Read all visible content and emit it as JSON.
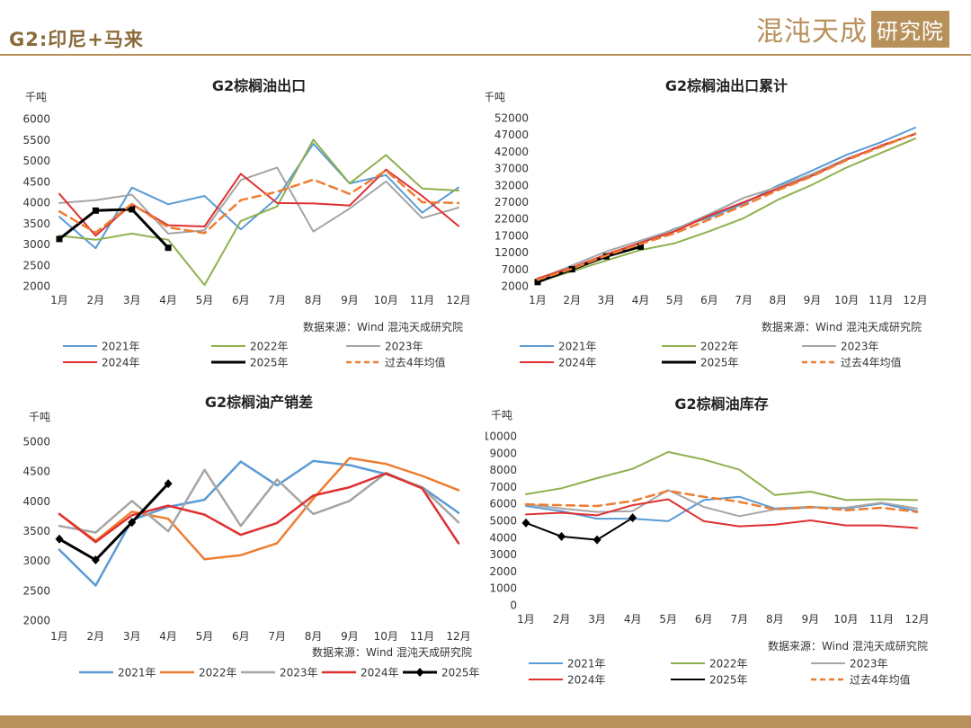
{
  "header": {
    "title": "G2:印尼+马来",
    "brand_main": "混沌天成",
    "brand_sub": "研究院"
  },
  "colors": {
    "2021年": "#5b9bd5",
    "2022年A": "#8fb04e",
    "2022年B": "#ed7d31",
    "2023年": "#a5a5a5",
    "2024年": "#e03030",
    "2025年": "#000000",
    "过去4年均值": "#ed7d31",
    "accent": "#b8905a"
  },
  "chart_data": [
    {
      "id": "export",
      "type": "line",
      "title": "G2棕榈油出口",
      "ylabel": "千吨",
      "source": "数据来源：Wind  混沌天成研究院",
      "categories": [
        "1月",
        "2月",
        "3月",
        "4月",
        "5月",
        "6月",
        "7月",
        "8月",
        "9月",
        "10月",
        "11月",
        "12月"
      ],
      "ylim": [
        2000,
        6000
      ],
      "yticks": [
        "6000",
        "5500",
        "5000",
        "4500",
        "4000",
        "3500",
        "3000",
        "2500",
        "2000"
      ],
      "series": [
        {
          "name": "2021年",
          "color": "#5b9bd5",
          "width": 2,
          "values": [
            3650,
            2900,
            4350,
            3950,
            4150,
            3350,
            4100,
            5400,
            4450,
            4650,
            3750,
            4350
          ]
        },
        {
          "name": "2022年",
          "color": "#8fb04e",
          "width": 2,
          "values": [
            3200,
            3100,
            3250,
            3100,
            2020,
            3550,
            3900,
            5500,
            4450,
            5130,
            4330,
            4280
          ]
        },
        {
          "name": "2023年",
          "color": "#a5a5a5",
          "width": 2,
          "values": [
            3980,
            4050,
            4180,
            3250,
            3330,
            4530,
            4830,
            3300,
            3850,
            4500,
            3620,
            3870
          ]
        },
        {
          "name": "2024年",
          "color": "#e03030",
          "width": 2,
          "values": [
            4200,
            3200,
            3950,
            3450,
            3420,
            4680,
            3980,
            3970,
            3920,
            4780,
            4150,
            3430
          ]
        },
        {
          "name": "2025年",
          "color": "#000000",
          "width": 3,
          "marker": "square",
          "values": [
            3120,
            3800,
            3830,
            2910,
            null,
            null,
            null,
            null,
            null,
            null,
            null,
            null
          ]
        },
        {
          "name": "过去4年均值",
          "color": "#ed7d31",
          "width": 2.5,
          "dash": "9,6",
          "values": [
            3780,
            3270,
            3960,
            3400,
            3260,
            4050,
            4250,
            4540,
            4200,
            4760,
            4000,
            3980
          ]
        }
      ]
    },
    {
      "id": "export-cum",
      "type": "line",
      "title": "G2棕榈油出口累计",
      "ylabel": "千吨",
      "source": "数据来源：Wind  混沌天成研究院",
      "categories": [
        "1月",
        "2月",
        "3月",
        "4月",
        "5月",
        "6月",
        "7月",
        "8月",
        "9月",
        "10月",
        "11月",
        "12月"
      ],
      "ylim": [
        2000,
        52000
      ],
      "yticks": [
        "52000",
        "47000",
        "42000",
        "37000",
        "32000",
        "27000",
        "22000",
        "17000",
        "12000",
        "7000",
        "2000"
      ],
      "series": [
        {
          "name": "2021年",
          "color": "#5b9bd5",
          "width": 2,
          "values": [
            3650,
            6550,
            10900,
            14850,
            19000,
            22350,
            26450,
            31850,
            36300,
            40950,
            44700,
            49050
          ]
        },
        {
          "name": "2022年",
          "color": "#8fb04e",
          "width": 2,
          "values": [
            3200,
            6300,
            9550,
            12650,
            14670,
            18220,
            22120,
            27620,
            32070,
            37200,
            41530,
            45810
          ]
        },
        {
          "name": "2023年",
          "color": "#a5a5a5",
          "width": 2,
          "values": [
            3980,
            8030,
            12210,
            15460,
            18790,
            23320,
            28150,
            31450,
            35300,
            39800,
            43420,
            47290
          ]
        },
        {
          "name": "2024年",
          "color": "#e03030",
          "width": 2,
          "values": [
            4200,
            7400,
            11350,
            14800,
            18220,
            22900,
            26880,
            30850,
            34770,
            39550,
            43700,
            47130
          ]
        },
        {
          "name": "2025年",
          "color": "#000000",
          "width": 3,
          "marker": "square",
          "values": [
            3120,
            6920,
            10750,
            13660,
            null,
            null,
            null,
            null,
            null,
            null,
            null,
            null
          ]
        },
        {
          "name": "过去4年均值",
          "color": "#ed7d31",
          "width": 2.5,
          "dash": "9,6",
          "values": [
            3760,
            7070,
            11000,
            14440,
            17670,
            21700,
            25900,
            30440,
            34600,
            39380,
            43340,
            47320
          ]
        }
      ]
    },
    {
      "id": "balance",
      "type": "line",
      "title": "G2棕榈油产销差",
      "ylabel": "千吨",
      "source": "数据来源：Wind 混沌天成研究院",
      "categories": [
        "1月",
        "2月",
        "3月",
        "4月",
        "5月",
        "6月",
        "7月",
        "8月",
        "9月",
        "10月",
        "11月",
        "12月"
      ],
      "ylim": [
        2000,
        5000
      ],
      "yticks": [
        "5000",
        "4500",
        "4000",
        "3500",
        "3000",
        "2500",
        "2000"
      ],
      "series": [
        {
          "name": "2021年",
          "color": "#5b9bd5",
          "width": 2.5,
          "values": [
            3180,
            2580,
            3680,
            3900,
            4020,
            4660,
            4260,
            4670,
            4600,
            4450,
            4230,
            3800
          ]
        },
        {
          "name": "2022年",
          "color": "#ed7d31",
          "width": 2.5,
          "values": [
            3780,
            3330,
            3820,
            3700,
            3020,
            3090,
            3290,
            4040,
            4720,
            4620,
            4420,
            4180
          ]
        },
        {
          "name": "2023年",
          "color": "#a5a5a5",
          "width": 2.5,
          "values": [
            3580,
            3470,
            4000,
            3490,
            4520,
            3580,
            4360,
            3780,
            4000,
            4470,
            4220,
            3640
          ]
        },
        {
          "name": "2024年",
          "color": "#e03030",
          "width": 2.5,
          "values": [
            3780,
            3310,
            3760,
            3920,
            3770,
            3430,
            3630,
            4090,
            4230,
            4460,
            4210,
            3290
          ]
        },
        {
          "name": "2025年",
          "color": "#000000",
          "width": 3,
          "marker": "diamond",
          "values": [
            3360,
            3010,
            3640,
            4290,
            null,
            null,
            null,
            null,
            null,
            null,
            null,
            null
          ]
        }
      ]
    },
    {
      "id": "stock",
      "type": "line",
      "title": "G2棕榈油库存",
      "ylabel": "千吨",
      "source": "数据来源：Wind  混沌天成研究院",
      "categories": [
        "1月",
        "2月",
        "3月",
        "4月",
        "5月",
        "6月",
        "7月",
        "8月",
        "9月",
        "10月",
        "11月",
        "12月"
      ],
      "ylim": [
        0,
        10000
      ],
      "yticks": [
        "10000",
        "9000",
        "8000",
        "7000",
        "6000",
        "5000",
        "4000",
        "3000",
        "2000",
        "1000",
        "0"
      ],
      "series": [
        {
          "name": "2021年",
          "color": "#5b9bd5",
          "width": 2,
          "values": [
            5850,
            5550,
            5100,
            5100,
            4950,
            6200,
            6400,
            5700,
            5800,
            5700,
            6000,
            5550
          ]
        },
        {
          "name": "2022年",
          "color": "#8fb04e",
          "width": 2,
          "values": [
            6550,
            6900,
            7500,
            8050,
            9050,
            8600,
            8000,
            6500,
            6700,
            6200,
            6250,
            6200
          ]
        },
        {
          "name": "2023年",
          "color": "#a5a5a5",
          "width": 2,
          "values": [
            5950,
            5700,
            5500,
            5550,
            6800,
            5800,
            5250,
            5650,
            5750,
            5750,
            6050,
            5700
          ]
        },
        {
          "name": "2024年",
          "color": "#e03030",
          "width": 2,
          "values": [
            5350,
            5450,
            5300,
            5900,
            6250,
            4950,
            4650,
            4750,
            5000,
            4700,
            4700,
            4550
          ]
        },
        {
          "name": "2025年",
          "color": "#000000",
          "width": 2,
          "marker": "diamond",
          "values": [
            4850,
            4050,
            3850,
            5150,
            null,
            null,
            null,
            null,
            null,
            null,
            null,
            null
          ]
        },
        {
          "name": "过去4年均值",
          "color": "#ed7d31",
          "width": 2.5,
          "dash": "9,6",
          "values": [
            5950,
            5900,
            5850,
            6150,
            6750,
            6400,
            6100,
            5650,
            5800,
            5600,
            5750,
            5500
          ]
        }
      ]
    }
  ]
}
